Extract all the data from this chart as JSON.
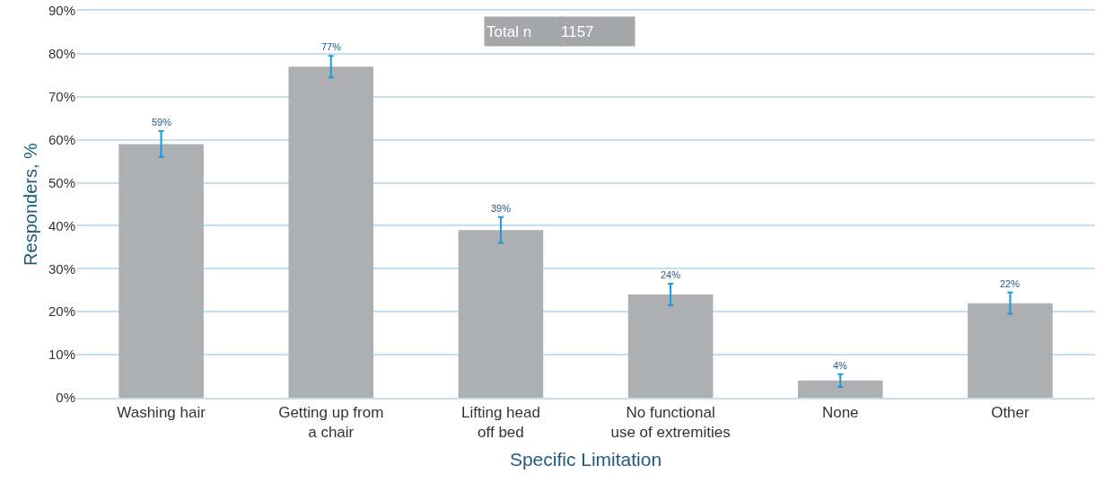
{
  "chart_data": {
    "type": "bar",
    "xlabel": "Specific Limitation",
    "ylabel": "Responders, %",
    "categories": [
      "Washing hair",
      "Getting up from a chair",
      "Lifting head off bed",
      "No functional use of extremities",
      "None",
      "Other"
    ],
    "values": [
      59,
      77,
      39,
      24,
      4,
      22
    ],
    "errors": [
      3,
      2.5,
      3,
      2.5,
      1.5,
      2.5
    ],
    "value_labels": [
      "59%",
      "77%",
      "39%",
      "24%",
      "4%",
      "22%"
    ],
    "color": "#aeafb3",
    "ylim": [
      0,
      90
    ],
    "yticks": [
      {
        "value": 0,
        "label": "0%"
      },
      {
        "value": 10,
        "label": "10%"
      },
      {
        "value": 20,
        "label": "20%"
      },
      {
        "value": 30,
        "label": "30%"
      },
      {
        "value": 40,
        "label": "40%"
      },
      {
        "value": 50,
        "label": "50%"
      },
      {
        "value": 60,
        "label": "60%"
      },
      {
        "value": 70,
        "label": "70%"
      },
      {
        "value": 80,
        "label": "80%"
      },
      {
        "value": 90,
        "label": "90%"
      }
    ],
    "grid": "y",
    "annotations": [
      "Total n",
      "1157"
    ]
  }
}
